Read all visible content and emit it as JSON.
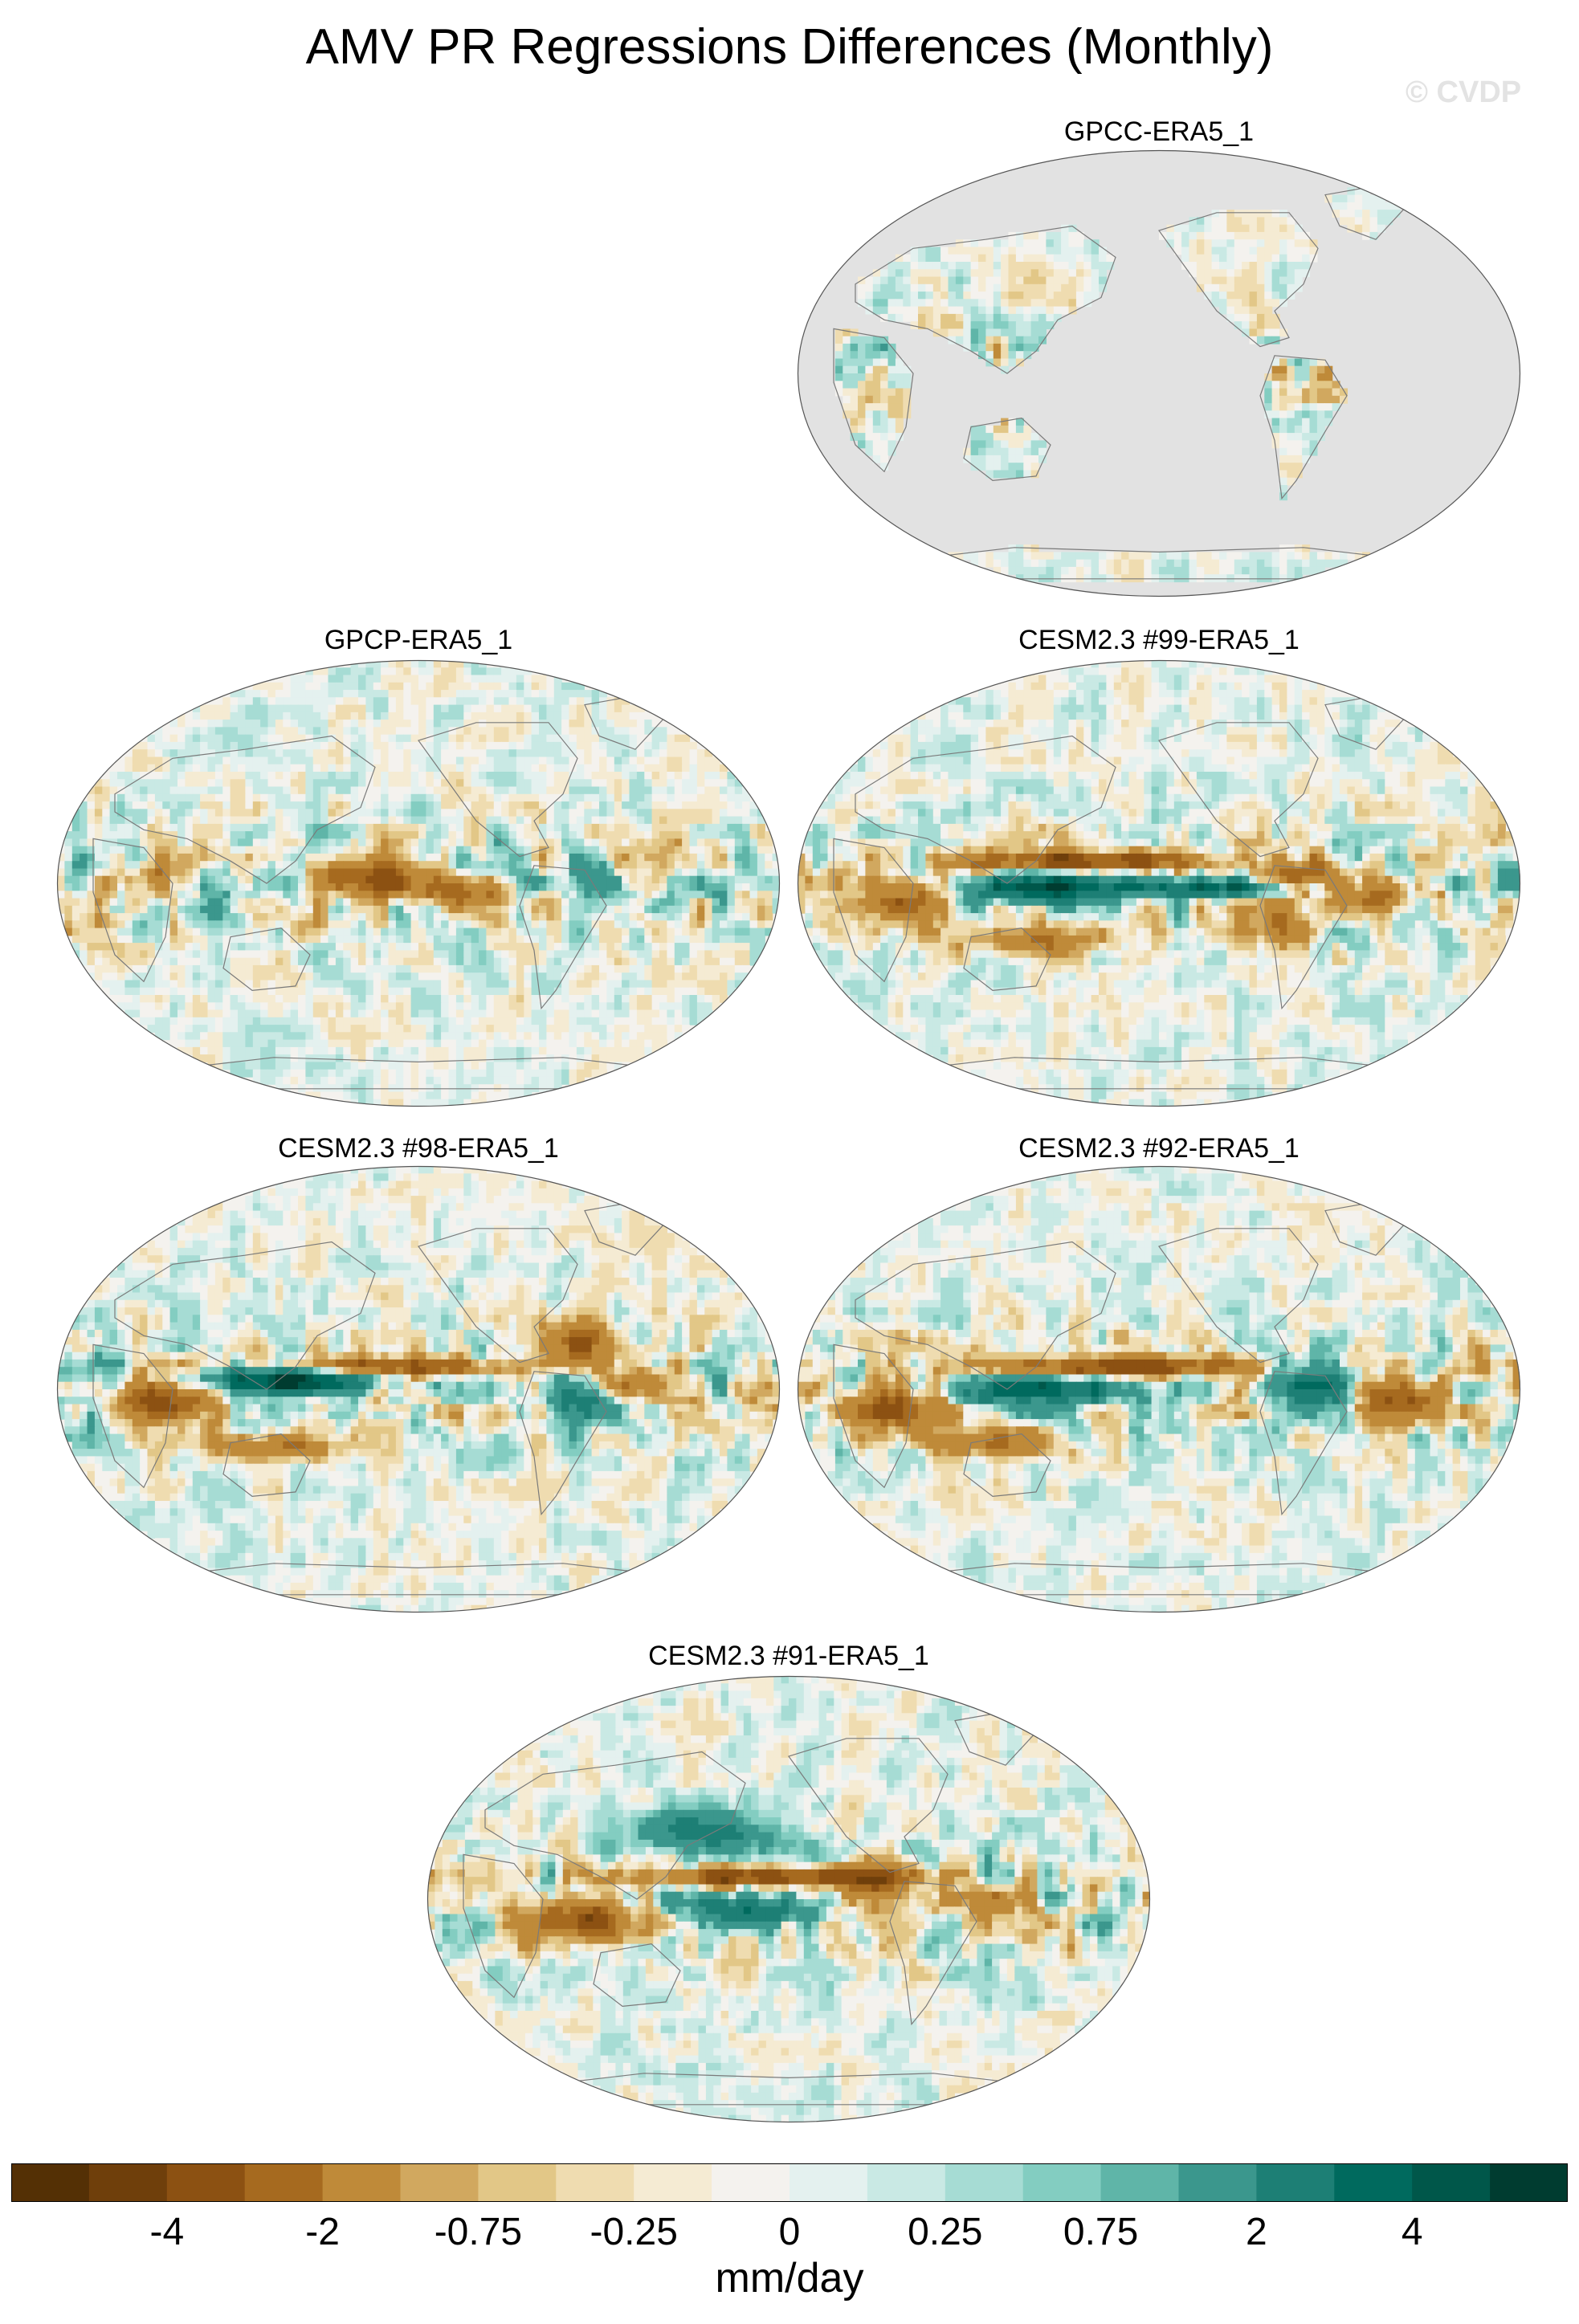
{
  "title": "AMV PR Regressions Differences (Monthly)",
  "watermark": "© CVDP",
  "chart_data": {
    "type": "heatmap",
    "projection": "Robinson-like global maps",
    "panels": [
      {
        "title": "GPCC-ERA5_1",
        "coverage": "land only (ocean masked grey)"
      },
      {
        "title": "GPCP-ERA5_1",
        "coverage": "global",
        "pattern": "negative tropical west/central Pacific, positive Maritime Continent"
      },
      {
        "title": "CESM2.3 #99-ERA5_1",
        "coverage": "global",
        "pattern": "strong positive-negative dipole along Pacific ITCZ"
      },
      {
        "title": "CESM2.3 #98-ERA5_1",
        "coverage": "global",
        "pattern": "strong positive-negative dipole along Pacific ITCZ"
      },
      {
        "title": "CESM2.3 #92-ERA5_1",
        "coverage": "global",
        "pattern": "strong positive-negative dipole along Pacific ITCZ"
      },
      {
        "title": "CESM2.3 #91-ERA5_1",
        "coverage": "global",
        "pattern": "strong positive-negative dipole along Pacific ITCZ"
      }
    ],
    "colorbar": {
      "units": "mm/day",
      "levels": [
        -5,
        -4,
        -3,
        -2,
        -1,
        -0.75,
        -0.5,
        -0.25,
        -0.1,
        0,
        0.1,
        0.25,
        0.5,
        0.75,
        1,
        2,
        3,
        4,
        5
      ],
      "tick_labels": [
        "-4",
        "-2",
        "-0.75",
        "-0.25",
        "0",
        "0.25",
        "0.75",
        "2",
        "4"
      ],
      "colors": [
        "#543005",
        "#6f3f0b",
        "#8c5112",
        "#a66a1f",
        "#bf8a39",
        "#d1a85f",
        "#e2c787",
        "#efdcb0",
        "#f5ebd3",
        "#f4f2ee",
        "#e4f1ef",
        "#c9e9e4",
        "#a6dcd4",
        "#83cdc1",
        "#5fb5a8",
        "#3b978d",
        "#1d7f75",
        "#006a5e",
        "#00574a",
        "#003c30"
      ]
    }
  }
}
